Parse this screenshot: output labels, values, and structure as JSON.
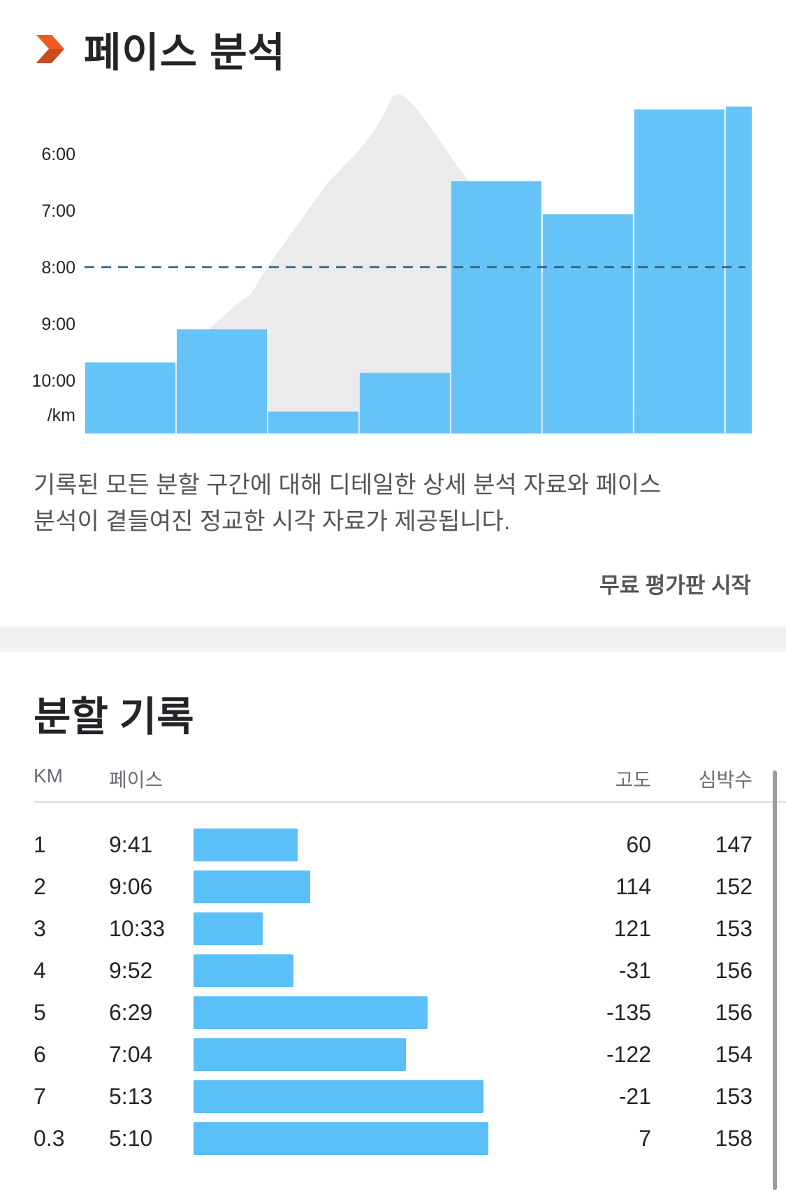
{
  "pace_section": {
    "title": "페이스 분석",
    "icon": "orange-chevron-icon",
    "description_line1": "기록된 모든 분할 구간에 대해 디테일한 상세 분석 자료와 페이스",
    "description_line2": "분석이 곁들여진 정교한 시각 자료가 제공됩니다.",
    "cta_label": "무료 평가판 시작"
  },
  "chart_data": {
    "type": "bar",
    "y_tick_labels": [
      "6:00",
      "7:00",
      "8:00",
      "9:00",
      "10:00"
    ],
    "y_unit_label": "/km",
    "y_axis_inverted": true,
    "ylim_seconds_per_km": [
      300,
      700
    ],
    "average_pace_line": "8:00",
    "series": [
      {
        "values_pace": [
          "9:41",
          "9:06",
          "10:33",
          "9:52",
          "6:29",
          "7:04",
          "5:13",
          "5:10"
        ]
      }
    ],
    "split_widths_km": [
      1,
      1,
      1,
      1,
      1,
      1,
      1,
      0.3
    ],
    "elevation_profile_gray_area": true,
    "grid": false,
    "colors": {
      "bar": "#5bbff8",
      "elevation": "#ebebee",
      "avg_line": "#2a5f7c"
    }
  },
  "splits": {
    "title": "분할 기록",
    "headers": {
      "km": "KM",
      "pace": "페이스",
      "elevation": "고도",
      "heart_rate": "심박수"
    },
    "rows": [
      {
        "km": "1",
        "pace": "9:41",
        "elev": "60",
        "hr": "147",
        "speed_ratio": 0.24
      },
      {
        "km": "2",
        "pace": "9:06",
        "elev": "114",
        "hr": "152",
        "speed_ratio": 0.27
      },
      {
        "km": "3",
        "pace": "10:33",
        "elev": "121",
        "hr": "153",
        "speed_ratio": 0.16
      },
      {
        "km": "4",
        "pace": "9:52",
        "elev": "-31",
        "hr": "156",
        "speed_ratio": 0.23
      },
      {
        "km": "5",
        "pace": "6:29",
        "elev": "-135",
        "hr": "156",
        "speed_ratio": 0.54
      },
      {
        "km": "6",
        "pace": "7:04",
        "elev": "-122",
        "hr": "154",
        "speed_ratio": 0.49
      },
      {
        "km": "7",
        "pace": "5:13",
        "elev": "-21",
        "hr": "153",
        "speed_ratio": 0.67
      },
      {
        "km": "0.3",
        "pace": "5:10",
        "elev": "7",
        "hr": "158",
        "speed_ratio": 0.68
      }
    ]
  }
}
